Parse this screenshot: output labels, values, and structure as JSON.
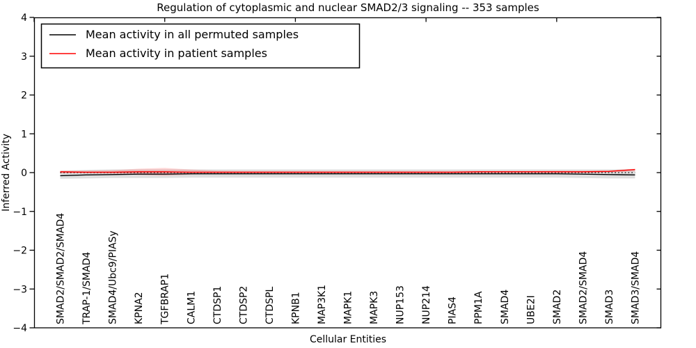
{
  "figure": {
    "title": "Regulation of cytoplasmic and nuclear SMAD2/3 signaling -- 353 samples",
    "xlabel": "Cellular Entities",
    "ylabel": "Inferred Activity"
  },
  "legend": {
    "position": "upper left",
    "entries": [
      {
        "label": "Mean activity in all permuted samples",
        "color": "#000000"
      },
      {
        "label": "Mean activity in patient samples",
        "color": "#ff0000"
      }
    ]
  },
  "chart_data": {
    "type": "line",
    "title": "Regulation of cytoplasmic and nuclear SMAD2/3 signaling -- 353 samples",
    "xlabel": "Cellular Entities",
    "ylabel": "Inferred Activity",
    "ylim": [
      -4,
      4
    ],
    "yticks": [
      4,
      3,
      2,
      1,
      0,
      -1,
      -2,
      -3,
      -4
    ],
    "xlim": [
      0,
      24
    ],
    "xticks_unlabeled": [
      0,
      5,
      10,
      15,
      20
    ],
    "grid": false,
    "legend_position": "upper left",
    "categories": [
      "SMAD2/SMAD2/SMAD4",
      "TRAP-1/SMAD4",
      "SMAD4/Ubc9/PIASy",
      "KPNA2",
      "TGFBRAP1",
      "CALM1",
      "CTDSP1",
      "CTDSP2",
      "CTDSPL",
      "KPNB1",
      "MAP3K1",
      "MAPK1",
      "MAPK3",
      "NUP153",
      "NUP214",
      "PIAS4",
      "PPM1A",
      "SMAD4",
      "UBE2I",
      "SMAD2",
      "SMAD2/SMAD4",
      "SMAD3",
      "SMAD3/SMAD4"
    ],
    "series": [
      {
        "name": "Mean activity in all permuted samples",
        "color": "#000000",
        "line_style": "solid",
        "values": [
          -0.08,
          -0.06,
          -0.05,
          -0.04,
          -0.04,
          -0.03,
          -0.03,
          -0.03,
          -0.03,
          -0.03,
          -0.03,
          -0.03,
          -0.03,
          -0.03,
          -0.03,
          -0.03,
          -0.03,
          -0.03,
          -0.03,
          -0.03,
          -0.04,
          -0.05,
          -0.06
        ],
        "band_upper": [
          0.05,
          0.07,
          0.08,
          0.08,
          0.08,
          0.08,
          0.08,
          0.08,
          0.08,
          0.08,
          0.08,
          0.08,
          0.08,
          0.08,
          0.08,
          0.08,
          0.08,
          0.08,
          0.08,
          0.08,
          0.08,
          0.08,
          0.09
        ],
        "band_lower": [
          -0.16,
          -0.15,
          -0.14,
          -0.14,
          -0.14,
          -0.13,
          -0.13,
          -0.13,
          -0.13,
          -0.13,
          -0.13,
          -0.13,
          -0.13,
          -0.13,
          -0.13,
          -0.13,
          -0.13,
          -0.13,
          -0.13,
          -0.13,
          -0.14,
          -0.15,
          -0.15
        ],
        "band_color": "rgba(0,0,0,0.13)"
      },
      {
        "name": "Mean activity in patient samples",
        "color": "#ff0000",
        "line_style": "solid",
        "values": [
          0.02,
          0.01,
          0.01,
          0.02,
          0.02,
          0.01,
          0.01,
          0.01,
          0.01,
          0.01,
          0.01,
          0.01,
          0.01,
          0.01,
          0.01,
          0.01,
          0.02,
          0.02,
          0.02,
          0.02,
          0.02,
          0.03,
          0.08
        ],
        "band_upper": [
          0.05,
          0.05,
          0.06,
          0.1,
          0.12,
          0.08,
          0.05,
          0.04,
          0.04,
          0.04,
          0.04,
          0.04,
          0.04,
          0.04,
          0.04,
          0.04,
          0.04,
          0.04,
          0.04,
          0.05,
          0.05,
          0.06,
          0.1
        ],
        "band_lower": [
          -0.02,
          -0.02,
          -0.03,
          -0.06,
          -0.08,
          -0.05,
          -0.02,
          -0.02,
          -0.02,
          -0.02,
          -0.02,
          -0.02,
          -0.02,
          -0.02,
          -0.02,
          -0.02,
          -0.01,
          -0.01,
          -0.01,
          -0.01,
          0.0,
          0.0,
          0.03
        ],
        "band_color": "rgba(255,0,0,0.16)"
      }
    ],
    "reference_line": {
      "y": 0,
      "style": "dotted",
      "color": "#000000"
    }
  }
}
